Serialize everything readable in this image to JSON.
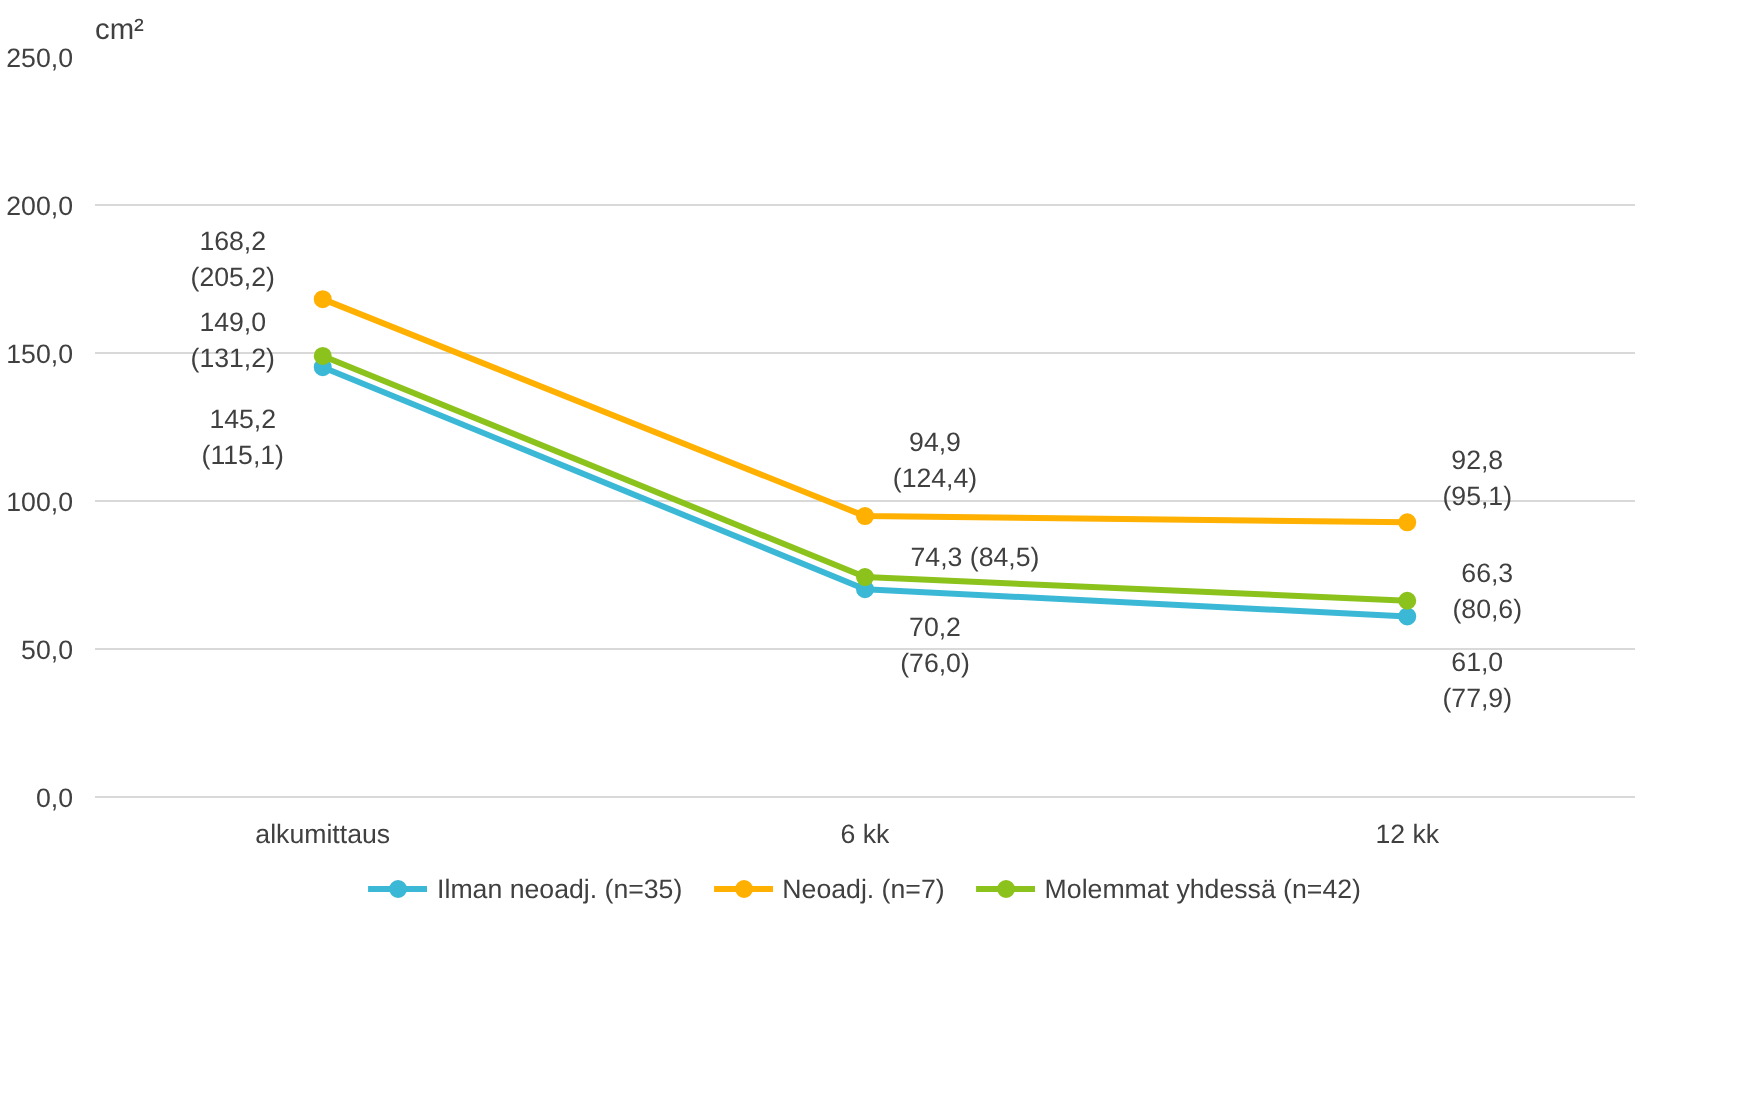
{
  "chart_data": {
    "type": "line",
    "ylabel": "cm²",
    "categories": [
      "alkumittaus",
      "6 kk",
      "12 kk"
    ],
    "series": [
      {
        "name": "Ilman neoadj. (n=35)",
        "color": "#3bb8d6",
        "values": [
          145.2,
          70.2,
          61.0
        ],
        "value_labels": [
          "145,2\n(115,1)",
          "70,2\n(76,0)",
          "61,0\n(77,9)"
        ]
      },
      {
        "name": "Neoadj. (n=7)",
        "color": "#ffb000",
        "values": [
          168.2,
          94.9,
          92.8
        ],
        "value_labels": [
          "168,2\n(205,2)",
          "94,9\n(124,4)",
          "92,8\n(95,1)"
        ]
      },
      {
        "name": "Molemmat yhdessä (n=42)",
        "color": "#8cc21c",
        "values": [
          149.0,
          74.3,
          66.3
        ],
        "value_labels": [
          "149,0\n(131,2)",
          "74,3 (84,5)",
          "66,3\n(80,6)"
        ]
      }
    ],
    "ylim": [
      0,
      250
    ],
    "yticks": [
      {
        "value": 0,
        "label": "0,0"
      },
      {
        "value": 50,
        "label": "50,0"
      },
      {
        "value": 100,
        "label": "100,0"
      },
      {
        "value": 150,
        "label": "150,0"
      },
      {
        "value": 200,
        "label": "200,0"
      },
      {
        "value": 250,
        "label": "250,0"
      }
    ],
    "grid": "y",
    "legend": "bottom",
    "marker": "circle",
    "line_style": "solid"
  }
}
